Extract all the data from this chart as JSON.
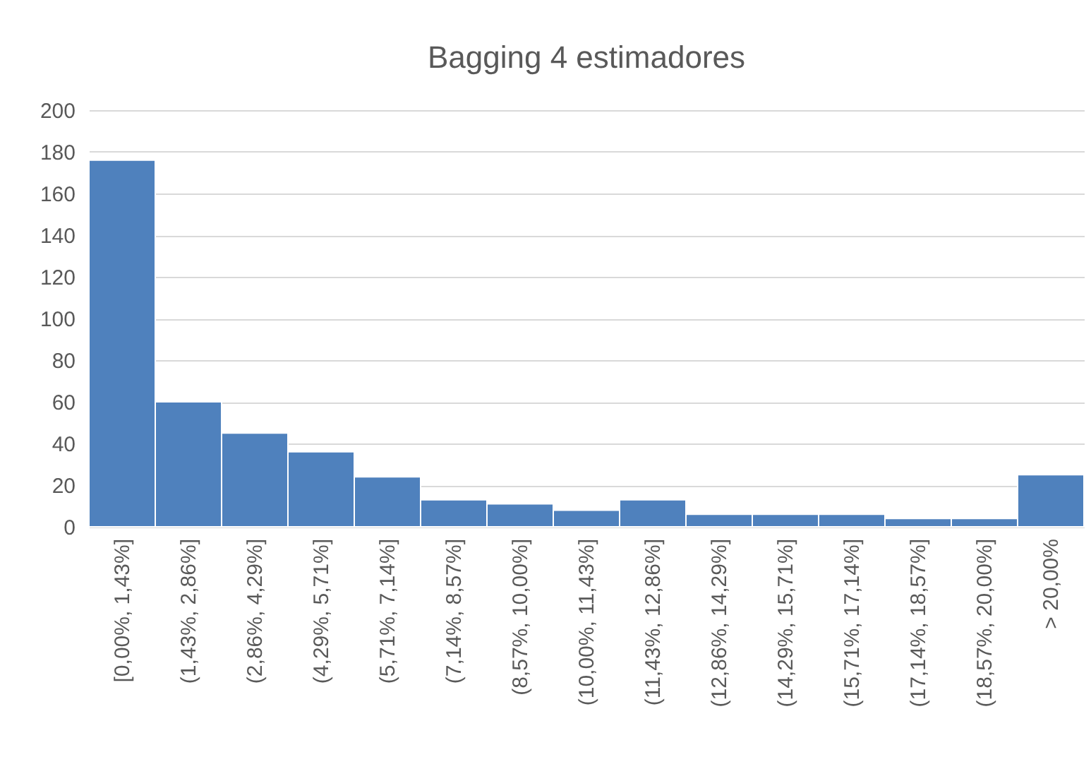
{
  "chart_data": {
    "type": "bar",
    "title": "Bagging 4 estimadores",
    "categories": [
      "[0,00%, 1,43%]",
      "(1,43%, 2,86%]",
      "(2,86%, 4,29%]",
      "(4,29%, 5,71%]",
      "(5,71%, 7,14%]",
      "(7,14%, 8,57%]",
      "(8,57%, 10,00%]",
      "(10,00%, 11,43%]",
      "(11,43%, 12,86%]",
      "(12,86%, 14,29%]",
      "(14,29%, 15,71%]",
      "(15,71%, 17,14%]",
      "(17,14%, 18,57%]",
      "(18,57%, 20,00%]",
      "> 20,00%"
    ],
    "values": [
      176,
      60,
      45,
      36,
      24,
      13,
      11,
      8,
      13,
      6,
      6,
      6,
      4,
      4,
      25
    ],
    "color": "#4f81bd",
    "ylim": [
      0,
      200
    ],
    "yticks": [
      0,
      20,
      40,
      60,
      80,
      100,
      120,
      140,
      160,
      180,
      200
    ],
    "grid": "y"
  }
}
